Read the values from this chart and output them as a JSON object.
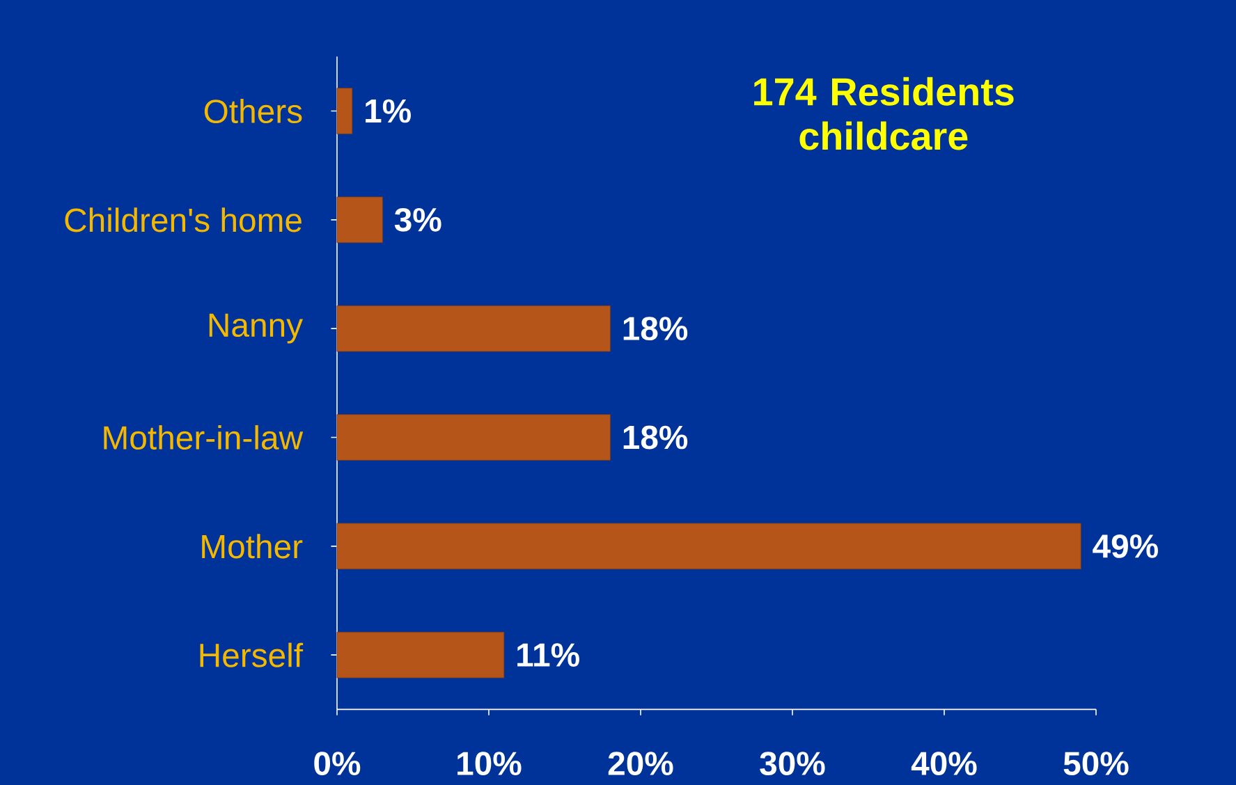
{
  "chart_data": {
    "type": "bar",
    "orientation": "horizontal",
    "title": "174 Residents childcare",
    "categories": [
      "Others",
      "Children's home",
      "Nanny",
      "Mother-in-law",
      "Mother",
      "Herself"
    ],
    "values": [
      1,
      3,
      18,
      18,
      49,
      11
    ],
    "value_labels": [
      "1%",
      "3%",
      "18%",
      "18%",
      "49%",
      "11%"
    ],
    "color": "#b5551a",
    "xlim": [
      0,
      50
    ],
    "xticks": [
      {
        "value": 0,
        "label": "0%"
      },
      {
        "value": 10,
        "label": "10%"
      },
      {
        "value": 20,
        "label": "20%"
      },
      {
        "value": 30,
        "label": "30%"
      },
      {
        "value": 40,
        "label": "40%"
      },
      {
        "value": 50,
        "label": "50%"
      }
    ]
  }
}
